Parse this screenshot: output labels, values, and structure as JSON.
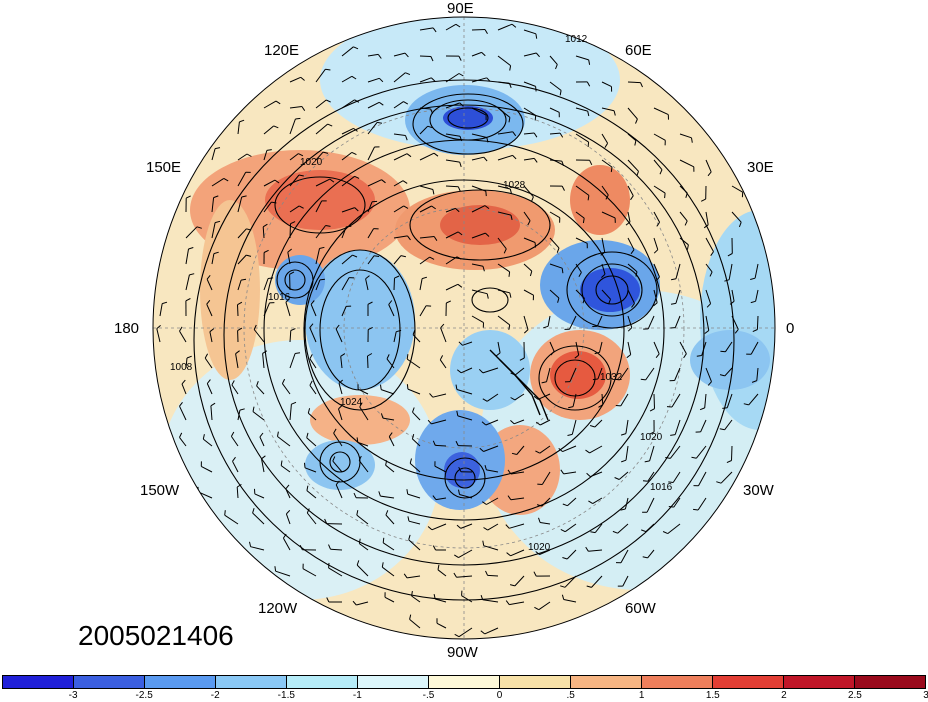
{
  "timestamp": "2005021406",
  "lon_labels": {
    "deg90e": "90E",
    "deg120e": "120E",
    "deg60e": "60E",
    "deg150e": "150E",
    "deg30e": "30E",
    "deg180": "180",
    "deg0": "0",
    "deg150w": "150W",
    "deg30w": "30W",
    "deg120w": "120W",
    "deg60w": "60W",
    "deg90w": "90W"
  },
  "contour_labels": [
    "1012",
    "1016",
    "1020",
    "1024",
    "1028",
    "1032",
    "1008"
  ],
  "colorbar": {
    "colors": [
      "#2020d8",
      "#3b5fe0",
      "#5a9af0",
      "#8ac8f5",
      "#b6ecf8",
      "#dcf6fb",
      "#fdf8d8",
      "#f7e1a8",
      "#f6b583",
      "#ee7f5c",
      "#e23e34",
      "#c01628",
      "#9a0a1c"
    ],
    "ticks": [
      "-3",
      "-2.5",
      "-2",
      "-1.5",
      "-1",
      "-.5",
      "0",
      ".5",
      "1",
      "1.5",
      "2",
      "2.5",
      "3"
    ]
  }
}
